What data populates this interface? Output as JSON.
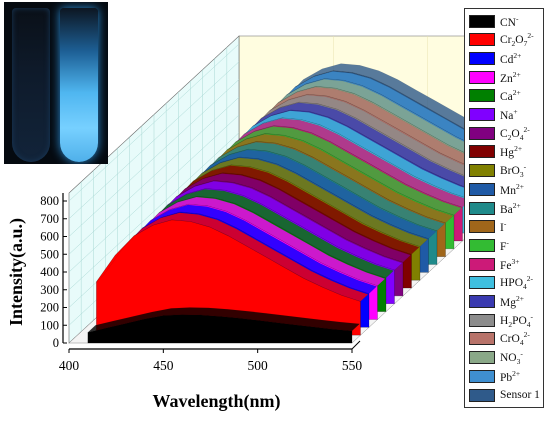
{
  "chart_data": {
    "type": "area",
    "title": "",
    "xlabel": "Wavelength(nm)",
    "ylabel": "Intensity(a.u.)",
    "xlim": [
      400,
      550
    ],
    "ylim": [
      0,
      800
    ],
    "x_ticks": [
      "400",
      "450",
      "500",
      "550"
    ],
    "y_ticks": [
      "0",
      "100",
      "200",
      "300",
      "400",
      "500",
      "600",
      "700",
      "800"
    ],
    "x": [
      410,
      420,
      430,
      440,
      450,
      460,
      470,
      480,
      490,
      500,
      510,
      520,
      530,
      540,
      550
    ],
    "series": [
      {
        "name": "CN-",
        "label_base": "CN",
        "label_sup": "-",
        "color": "#000000",
        "values": [
          60,
          85,
          110,
          135,
          155,
          160,
          158,
          150,
          140,
          128,
          115,
          102,
          90,
          78,
          68
        ]
      },
      {
        "name": "Cr2O72-",
        "label_base": "Cr",
        "label_sub1": "2",
        "label_mid": "O",
        "label_sub2": "7",
        "label_sup": "2-",
        "color": "#ff0000",
        "values": [
          300,
          450,
          560,
          620,
          650,
          640,
          610,
          560,
          500,
          440,
          380,
          320,
          270,
          225,
          190
        ]
      },
      {
        "name": "Cd2+",
        "label_base": "Cd",
        "label_sup": "2+",
        "color": "#0000ff",
        "values": [
          300,
          450,
          560,
          620,
          650,
          640,
          610,
          560,
          500,
          440,
          380,
          320,
          270,
          225,
          190
        ]
      },
      {
        "name": "Zn2+",
        "label_base": "Zn",
        "label_sup": "2+",
        "color": "#ff00ff",
        "values": [
          300,
          450,
          560,
          620,
          650,
          640,
          610,
          560,
          500,
          440,
          380,
          320,
          270,
          225,
          190
        ]
      },
      {
        "name": "Ca2+",
        "label_base": "Ca",
        "label_sup": "2+",
        "color": "#008000",
        "values": [
          300,
          450,
          560,
          620,
          650,
          640,
          610,
          560,
          500,
          440,
          380,
          320,
          270,
          225,
          190
        ]
      },
      {
        "name": "Na+",
        "label_base": "Na",
        "label_sup": "+",
        "color": "#8000ff",
        "values": [
          300,
          450,
          560,
          620,
          650,
          640,
          610,
          560,
          500,
          440,
          380,
          320,
          270,
          225,
          190
        ]
      },
      {
        "name": "C2O42-",
        "label_base": "C",
        "label_sub1": "2",
        "label_mid": "O",
        "label_sub2": "4",
        "label_sup": "2-",
        "color": "#800080",
        "values": [
          300,
          450,
          560,
          620,
          650,
          640,
          610,
          560,
          500,
          440,
          380,
          320,
          270,
          225,
          190
        ]
      },
      {
        "name": "Hg2+",
        "label_base": "Hg",
        "label_sup": "2+",
        "color": "#800000",
        "values": [
          300,
          450,
          560,
          620,
          650,
          640,
          610,
          560,
          500,
          440,
          380,
          320,
          270,
          225,
          190
        ]
      },
      {
        "name": "BrO3-",
        "label_base": "BrO",
        "label_sub1": "3",
        "label_sup": "-",
        "color": "#808000",
        "values": [
          300,
          450,
          560,
          620,
          650,
          640,
          610,
          560,
          500,
          440,
          380,
          320,
          270,
          225,
          190
        ]
      },
      {
        "name": "Mn2+",
        "label_base": "Mn",
        "label_sup": "2+",
        "color": "#1f5aa6",
        "values": [
          300,
          450,
          560,
          620,
          650,
          640,
          610,
          560,
          500,
          440,
          380,
          320,
          270,
          225,
          190
        ]
      },
      {
        "name": "Ba2+",
        "label_base": "Ba",
        "label_sup": "2+",
        "color": "#1f8a8a",
        "values": [
          300,
          450,
          560,
          620,
          650,
          640,
          610,
          560,
          500,
          440,
          380,
          320,
          270,
          225,
          190
        ]
      },
      {
        "name": "I-",
        "label_base": "I",
        "label_sup": "-",
        "color": "#a0661a",
        "values": [
          300,
          450,
          560,
          620,
          650,
          640,
          610,
          560,
          500,
          440,
          380,
          320,
          270,
          225,
          190
        ]
      },
      {
        "name": "F-",
        "label_base": "F",
        "label_sup": "-",
        "color": "#33bb33",
        "values": [
          300,
          450,
          560,
          620,
          650,
          640,
          610,
          560,
          500,
          440,
          380,
          320,
          270,
          225,
          190
        ]
      },
      {
        "name": "Fe3+",
        "label_base": "Fe",
        "label_sup": "3+",
        "color": "#cc1a78",
        "values": [
          300,
          450,
          560,
          620,
          650,
          640,
          610,
          560,
          500,
          440,
          380,
          320,
          270,
          225,
          190
        ]
      },
      {
        "name": "HPO42-",
        "label_base": "HPO",
        "label_sub1": "4",
        "label_sup": "2-",
        "color": "#3fbfdf",
        "values": [
          300,
          450,
          560,
          620,
          650,
          640,
          610,
          560,
          500,
          440,
          380,
          320,
          270,
          225,
          190
        ]
      },
      {
        "name": "Mg2+",
        "label_base": "Mg",
        "label_sup": "2+",
        "color": "#3a3ab0",
        "values": [
          300,
          450,
          560,
          620,
          650,
          640,
          610,
          560,
          500,
          440,
          380,
          320,
          270,
          225,
          190
        ]
      },
      {
        "name": "H2PO4-",
        "label_base": "H",
        "label_sub1": "2",
        "label_mid": "PO",
        "label_sub2": "4",
        "label_sup": "-",
        "color": "#8c8c8c",
        "values": [
          300,
          450,
          560,
          620,
          650,
          640,
          610,
          560,
          500,
          440,
          380,
          320,
          270,
          225,
          190
        ]
      },
      {
        "name": "CrO42-",
        "label_base": "CrO",
        "label_sub1": "4",
        "label_sup": "2-",
        "color": "#b8736a",
        "values": [
          300,
          450,
          560,
          620,
          650,
          640,
          610,
          560,
          500,
          440,
          380,
          320,
          270,
          225,
          190
        ]
      },
      {
        "name": "NO3-",
        "label_base": "NO",
        "label_sub1": "3",
        "label_sup": "-",
        "color": "#8aa888",
        "values": [
          300,
          450,
          560,
          620,
          650,
          640,
          610,
          560,
          500,
          440,
          380,
          320,
          270,
          225,
          190
        ]
      },
      {
        "name": "Pb2+",
        "label_base": "Pb",
        "label_sup": "2+",
        "color": "#3f8fd0",
        "values": [
          300,
          450,
          560,
          620,
          650,
          640,
          610,
          560,
          500,
          440,
          380,
          320,
          270,
          225,
          190
        ]
      },
      {
        "name": "Sensor 1",
        "label_base": "Sensor 1",
        "color": "#2f5a8a",
        "values": [
          300,
          450,
          560,
          620,
          650,
          640,
          610,
          560,
          500,
          440,
          380,
          320,
          270,
          225,
          190
        ]
      }
    ],
    "grid": true,
    "legend_placement": "right",
    "background_wall_color": "#fffde0"
  },
  "inset_photo": {
    "tube_left_color": "#12243a",
    "tube_right_color": "#4fb6f0"
  }
}
